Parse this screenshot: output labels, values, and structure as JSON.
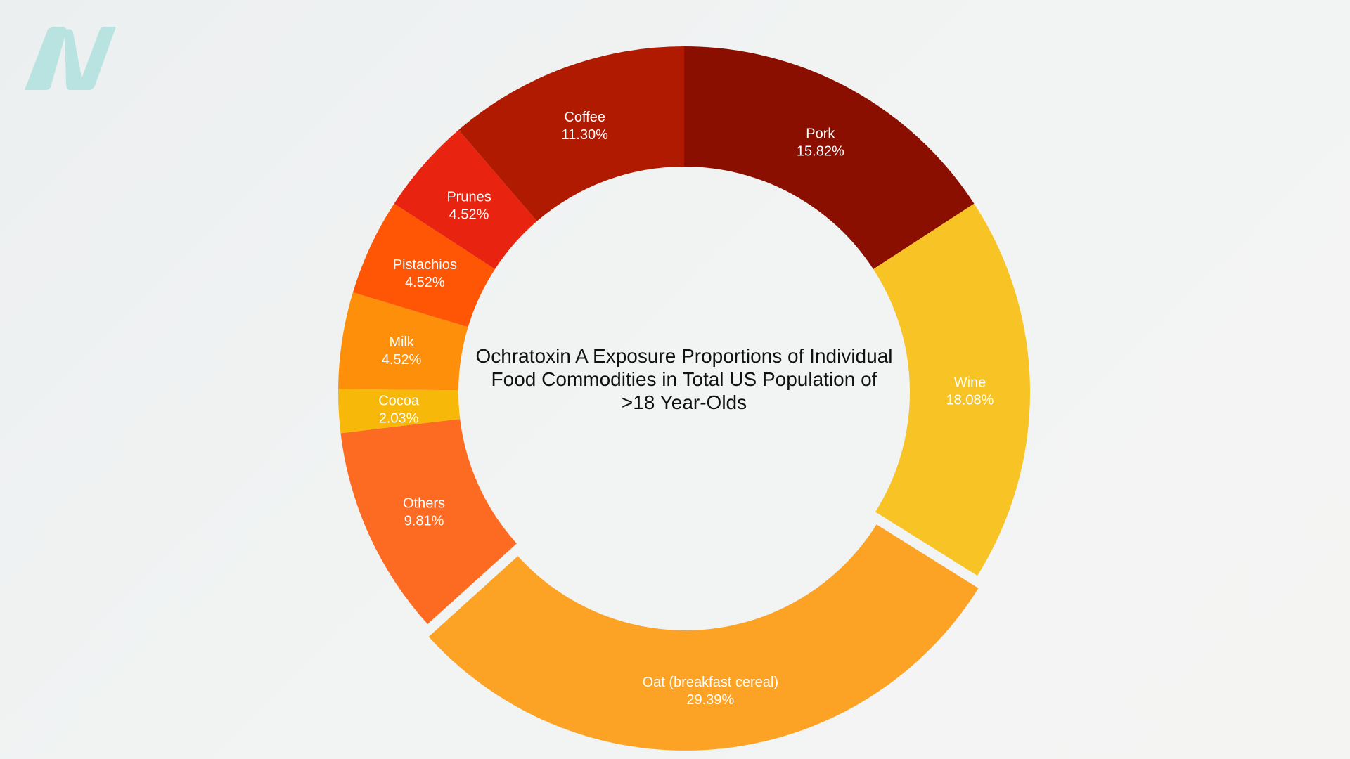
{
  "chart_data": {
    "type": "pie",
    "variant": "donut",
    "title": "Ochratoxin A Exposure Proportions of Individual Food Commodities in Total US Population of >18 Year-Olds",
    "slices": [
      {
        "label": "Pork",
        "value": 15.82,
        "display": "15.82%",
        "color": "#8b0f00"
      },
      {
        "label": "Wine",
        "value": 18.08,
        "display": "18.08%",
        "color": "#f7c325"
      },
      {
        "label": "Oat (breakfast cereal)",
        "value": 29.39,
        "display": "29.39%",
        "color": "#fca326",
        "exploded": true
      },
      {
        "label": "Others",
        "value": 9.81,
        "display": "9.81%",
        "color": "#fd6b23"
      },
      {
        "label": "Cocoa",
        "value": 2.03,
        "display": "2.03%",
        "color": "#f7b80a"
      },
      {
        "label": "Milk",
        "value": 4.52,
        "display": "4.52%",
        "color": "#fd8f0b"
      },
      {
        "label": "Pistachios",
        "value": 4.52,
        "display": "4.52%",
        "color": "#fe5605"
      },
      {
        "label": "Prunes",
        "value": 4.52,
        "display": "4.52%",
        "color": "#e8230f"
      },
      {
        "label": "Coffee",
        "value": 11.3,
        "display": "11.30%",
        "color": "#b01a00"
      }
    ],
    "start": "top",
    "direction": "clockwise",
    "legend": "none"
  },
  "logo": {
    "icon": "n-logo-icon",
    "color": "#b9e3e1"
  }
}
